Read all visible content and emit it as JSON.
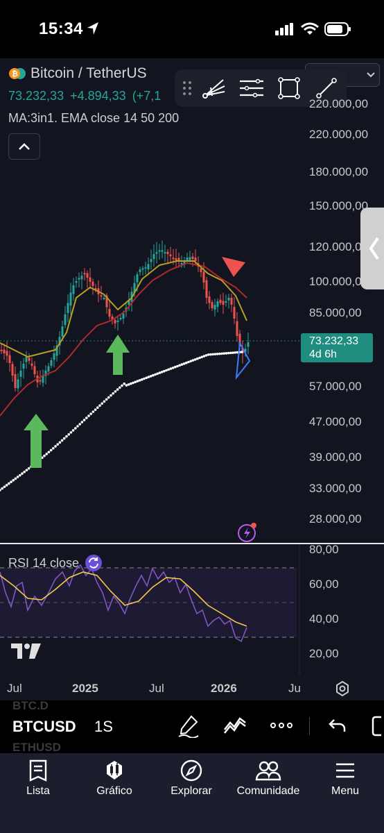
{
  "status_bar": {
    "time": "15:34"
  },
  "chart": {
    "symbol_title": "Bitcoin / TetherUS",
    "price": "73.232,33",
    "change": "+4.894,33",
    "change_pct": "(+7,1",
    "indicator": "MA:3in1. EMA close 14 50 200",
    "price_axis": [
      "220.000,00",
      "180.000,00",
      "150.000,00",
      "120.000,00",
      "100.000,00",
      "85.000,00",
      "57.000,00",
      "47.000,00",
      "39.000,00",
      "33.000,00",
      "28.000,00"
    ],
    "price_tag": {
      "value": "73.232,33",
      "countdown": "4d 6h"
    },
    "rsi_label": "RSI 14 close",
    "rsi_axis": [
      "80,00",
      "60,00",
      "40,00",
      "20,00"
    ],
    "time_axis": [
      "Jul",
      "2025",
      "Jul",
      "2026",
      "Ju"
    ],
    "colors": {
      "up": "#26a69a",
      "down": "#ef5350",
      "ema14": "#b7a31f",
      "ema50": "#b02a2a",
      "ema200": "#ffffff",
      "rsi": "#7e57c2",
      "rsi_ma": "#f2c94c"
    }
  },
  "symbol_bar": {
    "ghost_above": "BTC.D",
    "symbol": "BTCUSD",
    "timeframe": "1S",
    "ghost_below": "ETHUSD"
  },
  "nav": [
    {
      "label": "Lista",
      "icon": "list-icon"
    },
    {
      "label": "Gráfico",
      "icon": "chart-icon"
    },
    {
      "label": "Explorar",
      "icon": "compass-icon"
    },
    {
      "label": "Comunidade",
      "icon": "community-icon"
    },
    {
      "label": "Menu",
      "icon": "menu-icon"
    }
  ]
}
